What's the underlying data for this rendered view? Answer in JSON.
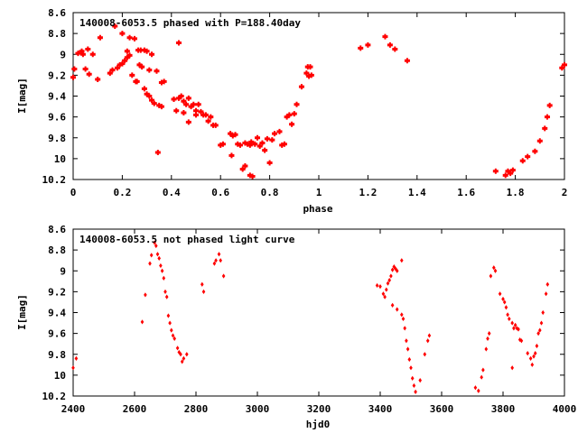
{
  "chart_data": [
    {
      "type": "scatter",
      "title": "140008-6053.5 phased with P=188.40day",
      "xlabel": "phase",
      "ylabel": "I[mag]",
      "xlim": [
        0,
        2
      ],
      "ylim": [
        10.2,
        8.6
      ],
      "y_inverted": true,
      "marker": "cross",
      "color": "#ff0000",
      "x_ticks": [
        "0",
        "0.2",
        "0.4",
        "0.6",
        "0.8",
        "1",
        "1.2",
        "1.4",
        "1.6",
        "1.8",
        "2"
      ],
      "y_ticks": [
        "8.6",
        "8.8",
        "9",
        "9.2",
        "9.4",
        "9.6",
        "9.8",
        "10",
        "10.2"
      ],
      "points": [
        [
          0.0,
          9.22
        ],
        [
          0.005,
          9.14
        ],
        [
          0.02,
          8.99
        ],
        [
          0.035,
          8.97
        ],
        [
          0.04,
          9.0
        ],
        [
          0.05,
          9.14
        ],
        [
          0.06,
          8.95
        ],
        [
          0.065,
          9.19
        ],
        [
          0.08,
          9.0
        ],
        [
          0.1,
          9.24
        ],
        [
          0.11,
          8.84
        ],
        [
          0.15,
          9.18
        ],
        [
          0.16,
          9.15
        ],
        [
          0.17,
          8.73
        ],
        [
          0.18,
          9.13
        ],
        [
          0.19,
          9.1
        ],
        [
          0.2,
          9.09
        ],
        [
          0.21,
          9.06
        ],
        [
          0.2,
          8.8
        ],
        [
          0.22,
          8.97
        ],
        [
          0.22,
          9.03
        ],
        [
          0.23,
          9.01
        ],
        [
          0.23,
          8.84
        ],
        [
          0.24,
          9.2
        ],
        [
          0.25,
          8.85
        ],
        [
          0.255,
          9.26
        ],
        [
          0.26,
          9.26
        ],
        [
          0.265,
          8.96
        ],
        [
          0.27,
          9.1
        ],
        [
          0.275,
          8.96
        ],
        [
          0.28,
          9.12
        ],
        [
          0.29,
          9.33
        ],
        [
          0.29,
          8.96
        ],
        [
          0.3,
          9.38
        ],
        [
          0.3,
          8.97
        ],
        [
          0.31,
          9.4
        ],
        [
          0.31,
          9.15
        ],
        [
          0.32,
          9.44
        ],
        [
          0.32,
          9.0
        ],
        [
          0.33,
          9.47
        ],
        [
          0.34,
          9.16
        ],
        [
          0.345,
          9.94
        ],
        [
          0.35,
          9.49
        ],
        [
          0.36,
          9.5
        ],
        [
          0.36,
          9.27
        ],
        [
          0.37,
          9.26
        ],
        [
          0.41,
          9.43
        ],
        [
          0.42,
          9.54
        ],
        [
          0.43,
          9.42
        ],
        [
          0.43,
          8.89
        ],
        [
          0.44,
          9.4
        ],
        [
          0.45,
          9.56
        ],
        [
          0.45,
          9.45
        ],
        [
          0.46,
          9.48
        ],
        [
          0.47,
          9.42
        ],
        [
          0.47,
          9.65
        ],
        [
          0.48,
          9.5
        ],
        [
          0.49,
          9.48
        ],
        [
          0.5,
          9.54
        ],
        [
          0.5,
          9.58
        ],
        [
          0.51,
          9.48
        ],
        [
          0.52,
          9.55
        ],
        [
          0.53,
          9.58
        ],
        [
          0.54,
          9.58
        ],
        [
          0.55,
          9.64
        ],
        [
          0.56,
          9.6
        ],
        [
          0.57,
          9.68
        ],
        [
          0.58,
          9.68
        ],
        [
          0.6,
          9.87
        ],
        [
          0.61,
          9.86
        ],
        [
          0.64,
          9.76
        ],
        [
          0.645,
          9.97
        ],
        [
          0.65,
          9.78
        ],
        [
          0.66,
          9.77
        ],
        [
          0.67,
          9.86
        ],
        [
          0.68,
          9.87
        ],
        [
          0.69,
          10.1
        ],
        [
          0.7,
          9.85
        ],
        [
          0.7,
          10.07
        ],
        [
          0.71,
          9.86
        ],
        [
          0.72,
          9.87
        ],
        [
          0.72,
          10.16
        ],
        [
          0.725,
          9.84
        ],
        [
          0.73,
          10.17
        ],
        [
          0.74,
          9.86
        ],
        [
          0.75,
          9.8
        ],
        [
          0.76,
          9.88
        ],
        [
          0.77,
          9.85
        ],
        [
          0.78,
          9.92
        ],
        [
          0.79,
          9.81
        ],
        [
          0.8,
          10.04
        ],
        [
          0.81,
          9.82
        ],
        [
          0.82,
          9.76
        ],
        [
          0.84,
          9.74
        ],
        [
          0.85,
          9.87
        ],
        [
          0.86,
          9.86
        ],
        [
          0.87,
          9.6
        ],
        [
          0.88,
          9.58
        ],
        [
          0.89,
          9.67
        ],
        [
          0.9,
          9.57
        ],
        [
          0.91,
          9.48
        ],
        [
          0.93,
          9.31
        ],
        [
          0.95,
          9.18
        ],
        [
          0.955,
          9.12
        ],
        [
          0.96,
          9.21
        ],
        [
          0.965,
          9.12
        ],
        [
          0.97,
          9.2
        ],
        [
          1.17,
          8.94
        ],
        [
          1.2,
          8.91
        ],
        [
          1.27,
          8.83
        ],
        [
          1.29,
          8.91
        ],
        [
          1.31,
          8.95
        ],
        [
          1.36,
          9.06
        ],
        [
          1.72,
          10.12
        ],
        [
          1.76,
          10.16
        ],
        [
          1.77,
          10.12
        ],
        [
          1.78,
          10.14
        ],
        [
          1.79,
          10.11
        ],
        [
          1.83,
          10.02
        ],
        [
          1.85,
          9.98
        ],
        [
          1.88,
          9.93
        ],
        [
          1.9,
          9.83
        ],
        [
          1.92,
          9.71
        ],
        [
          1.93,
          9.6
        ],
        [
          1.94,
          9.49
        ],
        [
          1.99,
          9.13
        ],
        [
          2.0,
          9.1
        ]
      ]
    },
    {
      "type": "scatter",
      "title": "140008-6053.5 not phased light curve",
      "xlabel": "hjd0",
      "ylabel": "I[mag]",
      "xlim": [
        2400,
        4000
      ],
      "ylim": [
        10.2,
        8.6
      ],
      "y_inverted": true,
      "marker": "diamond",
      "color": "#ff0000",
      "x_ticks": [
        "2400",
        "2600",
        "2800",
        "3000",
        "3200",
        "3400",
        "3600",
        "3800",
        "4000"
      ],
      "y_ticks": [
        "8.6",
        "8.8",
        "9",
        "9.2",
        "9.4",
        "9.6",
        "9.8",
        "10",
        "10.2"
      ],
      "points": [
        [
          2400,
          9.93
        ],
        [
          2410,
          9.84
        ],
        [
          2625,
          9.49
        ],
        [
          2635,
          9.23
        ],
        [
          2650,
          8.93
        ],
        [
          2655,
          8.85
        ],
        [
          2665,
          8.73
        ],
        [
          2670,
          8.76
        ],
        [
          2675,
          8.84
        ],
        [
          2680,
          8.88
        ],
        [
          2685,
          8.95
        ],
        [
          2690,
          9.0
        ],
        [
          2695,
          9.07
        ],
        [
          2700,
          9.2
        ],
        [
          2705,
          9.25
        ],
        [
          2710,
          9.43
        ],
        [
          2715,
          9.5
        ],
        [
          2720,
          9.57
        ],
        [
          2725,
          9.62
        ],
        [
          2730,
          9.65
        ],
        [
          2740,
          9.74
        ],
        [
          2745,
          9.78
        ],
        [
          2750,
          9.8
        ],
        [
          2755,
          9.87
        ],
        [
          2760,
          9.84
        ],
        [
          2770,
          9.8
        ],
        [
          2820,
          9.13
        ],
        [
          2825,
          9.2
        ],
        [
          2860,
          8.93
        ],
        [
          2865,
          8.9
        ],
        [
          2875,
          8.84
        ],
        [
          2880,
          8.9
        ],
        [
          2890,
          9.05
        ],
        [
          3390,
          9.14
        ],
        [
          3400,
          9.15
        ],
        [
          3410,
          9.22
        ],
        [
          3415,
          9.25
        ],
        [
          3420,
          9.18
        ],
        [
          3425,
          9.12
        ],
        [
          3430,
          9.09
        ],
        [
          3435,
          9.05
        ],
        [
          3440,
          8.99
        ],
        [
          3445,
          8.96
        ],
        [
          3450,
          8.98
        ],
        [
          3455,
          9.0
        ],
        [
          3440,
          9.33
        ],
        [
          3455,
          9.37
        ],
        [
          3470,
          8.9
        ],
        [
          3470,
          9.42
        ],
        [
          3475,
          9.46
        ],
        [
          3480,
          9.55
        ],
        [
          3485,
          9.67
        ],
        [
          3490,
          9.75
        ],
        [
          3495,
          9.85
        ],
        [
          3500,
          9.93
        ],
        [
          3505,
          10.03
        ],
        [
          3510,
          10.1
        ],
        [
          3515,
          10.16
        ],
        [
          3530,
          10.05
        ],
        [
          3545,
          9.8
        ],
        [
          3555,
          9.67
        ],
        [
          3560,
          9.62
        ],
        [
          3710,
          10.12
        ],
        [
          3720,
          10.15
        ],
        [
          3730,
          10.02
        ],
        [
          3735,
          9.95
        ],
        [
          3745,
          9.75
        ],
        [
          3750,
          9.65
        ],
        [
          3755,
          9.6
        ],
        [
          3760,
          9.05
        ],
        [
          3770,
          8.97
        ],
        [
          3775,
          9.0
        ],
        [
          3790,
          9.22
        ],
        [
          3800,
          9.27
        ],
        [
          3805,
          9.3
        ],
        [
          3810,
          9.35
        ],
        [
          3815,
          9.42
        ],
        [
          3820,
          9.46
        ],
        [
          3830,
          9.5
        ],
        [
          3835,
          9.55
        ],
        [
          3840,
          9.52
        ],
        [
          3845,
          9.55
        ],
        [
          3850,
          9.56
        ],
        [
          3855,
          9.66
        ],
        [
          3860,
          9.67
        ],
        [
          3880,
          9.79
        ],
        [
          3890,
          9.84
        ],
        [
          3895,
          9.9
        ],
        [
          3900,
          9.82
        ],
        [
          3905,
          9.79
        ],
        [
          3910,
          9.72
        ],
        [
          3915,
          9.6
        ],
        [
          3920,
          9.57
        ],
        [
          3925,
          9.5
        ],
        [
          3930,
          9.4
        ],
        [
          3940,
          9.22
        ],
        [
          3945,
          9.13
        ],
        [
          3830,
          9.93
        ]
      ]
    }
  ]
}
